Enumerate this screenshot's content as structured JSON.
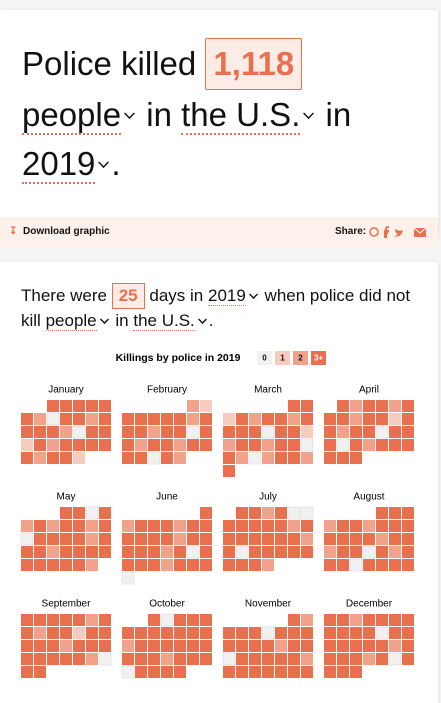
{
  "header": {
    "prefix": "Police killed",
    "count": "1,118",
    "noun": "people",
    "place_prefix": "in",
    "place": "the U.S.",
    "year_prefix": "in",
    "year": "2019",
    "end": "."
  },
  "toolbar": {
    "download": "Download graphic",
    "share": "Share:"
  },
  "summary": {
    "prefix": "There were",
    "count": "25",
    "days": "days in",
    "year": "2019",
    "middle": "when police did not kill",
    "noun": "people",
    "place_prefix": "in",
    "place": "the U.S.",
    "end": "."
  },
  "chart_data": {
    "type": "calendar",
    "title": "Killings by police in 2019",
    "legend": [
      {
        "value": 0,
        "label": "0"
      },
      {
        "value": 1,
        "label": "1"
      },
      {
        "value": 2,
        "label": "2"
      },
      {
        "value": 3,
        "label": "3+"
      }
    ],
    "colors": [
      "#f1f1f1",
      "#f7cbbd",
      "#f0a28a",
      "#e8704f"
    ],
    "months": [
      {
        "name": "January",
        "values": [
          3,
          3,
          3,
          3,
          3,
          3,
          2,
          0,
          3,
          3,
          2,
          3,
          3,
          3,
          3,
          2,
          0,
          3,
          3,
          1,
          3,
          2,
          3,
          3,
          3,
          3,
          3,
          2,
          3,
          3,
          1
        ]
      },
      {
        "name": "February",
        "values": [
          2,
          1,
          3,
          3,
          3,
          3,
          3,
          2,
          3,
          3,
          3,
          2,
          3,
          3,
          0,
          3,
          3,
          2,
          3,
          3,
          2,
          3,
          3,
          3,
          3,
          0,
          3,
          2
        ]
      },
      {
        "name": "March",
        "values": [
          3,
          3,
          1,
          3,
          2,
          3,
          3,
          2,
          3,
          3,
          3,
          3,
          0,
          3,
          3,
          1,
          2,
          3,
          3,
          2,
          3,
          3,
          0,
          3,
          2,
          0,
          2,
          3,
          3,
          2,
          3
        ]
      },
      {
        "name": "April",
        "values": [
          3,
          2,
          3,
          3,
          2,
          3,
          3,
          3,
          2,
          3,
          3,
          1,
          3,
          3,
          2,
          3,
          3,
          0,
          3,
          3,
          3,
          0,
          3,
          2,
          3,
          3,
          3,
          3,
          3,
          3
        ]
      },
      {
        "name": "May",
        "values": [
          3,
          3,
          0,
          3,
          2,
          3,
          2,
          3,
          3,
          2,
          3,
          0,
          3,
          3,
          3,
          3,
          2,
          3,
          3,
          3,
          2,
          3,
          3,
          3,
          3,
          3,
          3,
          3,
          3,
          3,
          2
        ]
      },
      {
        "name": "June",
        "values": [
          3,
          2,
          3,
          3,
          3,
          2,
          3,
          3,
          3,
          3,
          3,
          3,
          2,
          3,
          3,
          3,
          3,
          3,
          2,
          3,
          0,
          3,
          3,
          3,
          3,
          2,
          3,
          3,
          3,
          0
        ]
      },
      {
        "name": "July",
        "values": [
          3,
          3,
          2,
          3,
          0,
          0,
          3,
          3,
          3,
          3,
          3,
          2,
          3,
          3,
          3,
          3,
          3,
          3,
          3,
          2,
          3,
          0,
          3,
          3,
          3,
          3,
          3,
          3,
          3,
          3,
          2
        ]
      },
      {
        "name": "August",
        "values": [
          3,
          3,
          3,
          2,
          3,
          3,
          2,
          3,
          3,
          3,
          3,
          3,
          3,
          3,
          2,
          3,
          3,
          2,
          3,
          3,
          0,
          3,
          2,
          3,
          3,
          3,
          0,
          3,
          3,
          3,
          3
        ]
      },
      {
        "name": "September",
        "values": [
          3,
          3,
          3,
          3,
          3,
          2,
          3,
          3,
          2,
          3,
          3,
          1,
          3,
          3,
          3,
          3,
          3,
          2,
          3,
          3,
          3,
          3,
          3,
          3,
          3,
          3,
          2,
          0,
          3,
          3
        ]
      },
      {
        "name": "October",
        "values": [
          3,
          0,
          3,
          3,
          3,
          3,
          3,
          3,
          3,
          3,
          3,
          3,
          2,
          3,
          3,
          3,
          3,
          3,
          3,
          3,
          3,
          3,
          2,
          3,
          3,
          3,
          0,
          3,
          3,
          3,
          3
        ]
      },
      {
        "name": "November",
        "values": [
          3,
          2,
          3,
          3,
          3,
          0,
          3,
          3,
          3,
          3,
          3,
          3,
          3,
          2,
          3,
          3,
          0,
          3,
          3,
          3,
          3,
          3,
          2,
          3,
          3,
          3,
          3,
          3,
          3,
          3
        ]
      },
      {
        "name": "December",
        "values": [
          3,
          3,
          2,
          3,
          3,
          3,
          3,
          3,
          3,
          3,
          3,
          0,
          3,
          3,
          3,
          3,
          3,
          3,
          3,
          2,
          3,
          3,
          3,
          3,
          2,
          3,
          0,
          3,
          3,
          3,
          3
        ]
      }
    ]
  }
}
